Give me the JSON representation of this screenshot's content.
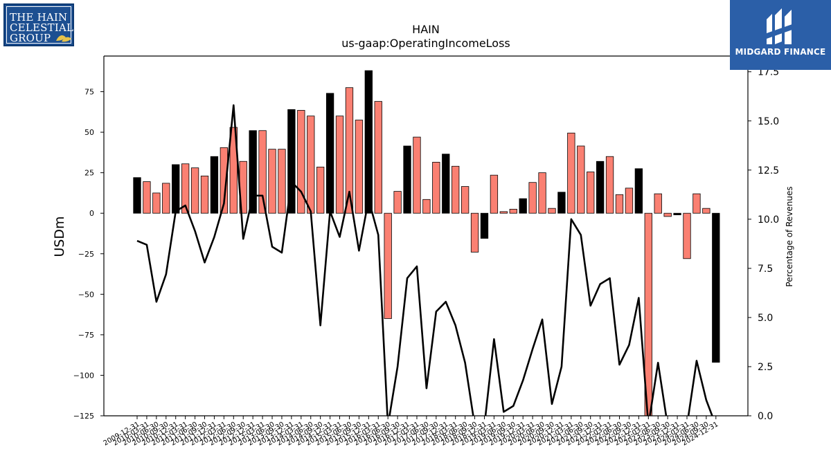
{
  "logos": {
    "left_lines": [
      "THE HAIN",
      "CELESTIAL",
      "GROUP"
    ],
    "right_name": "MIDGARD FINANCE"
  },
  "chart_data": {
    "type": "bar",
    "title": "HAIN",
    "subtitle": "us-gaap:OperatingIncomeLoss",
    "ylabel": "USDm",
    "y2label": "Percentage of Revenues",
    "ylim": [
      -125,
      97
    ],
    "y2lim": [
      0,
      18.3
    ],
    "y_ticks": [
      -125,
      -100,
      -75,
      -50,
      -25,
      0,
      25,
      50,
      75
    ],
    "y2_ticks": [
      "0.0",
      "2.5",
      "5.0",
      "7.5",
      "10.0",
      "12.5",
      "15.0",
      "17.5"
    ],
    "colors": {
      "annual": "#000000",
      "quarterly": "#fa8072",
      "line": "#000000"
    },
    "categories": [
      "2009-12-31",
      "2010-03-31",
      "2010-06-30",
      "2010-09-30",
      "2010-12-31",
      "2011-03-31",
      "2011-06-30",
      "2011-09-30",
      "2011-12-31",
      "2012-03-31",
      "2012-06-30",
      "2012-09-30",
      "2012-12-31",
      "2013-03-31",
      "2013-06-30",
      "2013-09-30",
      "2013-12-31",
      "2014-03-31",
      "2014-06-30",
      "2014-09-30",
      "2014-12-31",
      "2015-03-31",
      "2015-06-30",
      "2015-09-30",
      "2015-12-31",
      "2016-03-31",
      "2016-06-30",
      "2016-09-30",
      "2016-12-31",
      "2017-03-31",
      "2017-06-30",
      "2017-09-30",
      "2017-12-31",
      "2018-03-31",
      "2018-06-30",
      "2018-09-30",
      "2018-12-31",
      "2019-03-31",
      "2019-06-30",
      "2019-09-30",
      "2019-12-31",
      "2020-03-31",
      "2020-06-30",
      "2020-09-30",
      "2020-12-31",
      "2021-03-31",
      "2021-06-30",
      "2021-09-30",
      "2021-12-31",
      "2022-03-31",
      "2022-06-30",
      "2022-09-30",
      "2022-12-31",
      "2023-03-31",
      "2023-06-30",
      "2023-09-30",
      "2023-12-31",
      "2024-03-31",
      "2024-06-30",
      "2024-09-30",
      "2024-12-31"
    ],
    "tick_labels": [
      "2009-12-31",
      "2010-03-31",
      "2010-06-30",
      "2010-09-30",
      "2010-12-31",
      "2011-03-31",
      "2011-06-30",
      "2011-09-30",
      "2011-12-31",
      "2012-03-31",
      "2012-06-30",
      "2012-09-30",
      "2012-12-31",
      "2013-03-31",
      "2013-06-30",
      "2013-09-30",
      "2013-12-31",
      "2014-03-31",
      "2014-06-30",
      "2014-09-30",
      "2014-12-31",
      "2015-03-31",
      "2015-06-30",
      "2015-09-30",
      "2015-12-31",
      "2016-03-31",
      "2016-06-30",
      "2016-09-30",
      "2016-12-31",
      "2017-03-31",
      "2017-06-30",
      "2017-09-30",
      "2017-12-31",
      "2018-03-31",
      "2018-06-30",
      "2018-09-30",
      "2018-12-31",
      "2019-03-31",
      "2019-06-30",
      "2019-09-30",
      "2019-12-31",
      "2020-03-31",
      "2020-06-30",
      "2020-09-30",
      "2020-12-31",
      "2021-03-31",
      "2021-06-30",
      "2021-09-30",
      "2021-12-31",
      "2022-03-31",
      "2022-06-30",
      "2022-09-30",
      "2022-12-31",
      "2023-03-31",
      "2023-06-30",
      "2023-09-30",
      "2023-12-31",
      "2024-03-31",
      "2024-06-30",
      "2024-09-30",
      "2024-12-31"
    ],
    "bar_values": [
      22,
      19.5,
      12.5,
      18.5,
      30,
      30.5,
      28,
      23,
      35,
      40.5,
      53,
      32,
      51,
      51,
      39.5,
      39.5,
      64,
      63.5,
      60,
      28.5,
      74,
      60,
      77.5,
      57.5,
      88,
      69,
      -65,
      13.5,
      41.5,
      47,
      8.5,
      31.5,
      36.5,
      29,
      16.5,
      -24,
      -15.5,
      23.5,
      1,
      2.5,
      9,
      19,
      25,
      3,
      13,
      49.5,
      41.5,
      25.5,
      32,
      35,
      11.5,
      15.5,
      27.5,
      -125,
      12,
      -2,
      -1,
      -28,
      12,
      3,
      -92
    ],
    "bar_kind": [
      "A",
      "Q",
      "Q",
      "Q",
      "A",
      "Q",
      "Q",
      "Q",
      "A",
      "Q",
      "Q",
      "Q",
      "A",
      "Q",
      "Q",
      "Q",
      "A",
      "Q",
      "Q",
      "Q",
      "A",
      "Q",
      "Q",
      "Q",
      "A",
      "Q",
      "Q",
      "Q",
      "A",
      "Q",
      "Q",
      "Q",
      "A",
      "Q",
      "Q",
      "Q",
      "A",
      "Q",
      "Q",
      "Q",
      "A",
      "Q",
      "Q",
      "Q",
      "A",
      "Q",
      "Q",
      "Q",
      "A",
      "Q",
      "Q",
      "Q",
      "A",
      "Q",
      "Q",
      "Q",
      "A",
      "Q",
      "Q",
      "Q",
      "A"
    ],
    "line_values": [
      8.9,
      8.7,
      5.8,
      7.2,
      10.4,
      10.7,
      9.4,
      7.8,
      9.1,
      10.8,
      15.8,
      9.0,
      11.2,
      11.2,
      8.6,
      8.3,
      11.9,
      11.4,
      10.4,
      4.6,
      10.4,
      9.1,
      11.4,
      8.4,
      11.0,
      9.2,
      -0.5,
      2.5,
      7.0,
      7.6,
      1.4,
      5.3,
      5.8,
      4.6,
      2.7,
      -0.5,
      -0.5,
      3.9,
      0.2,
      0.5,
      1.8,
      3.4,
      4.9,
      0.6,
      2.5,
      10.0,
      9.2,
      5.6,
      6.7,
      7.0,
      2.6,
      3.6,
      6.0,
      -0.5,
      2.7,
      -0.5,
      -0.5,
      -0.5,
      2.8,
      0.8,
      -0.5
    ]
  }
}
